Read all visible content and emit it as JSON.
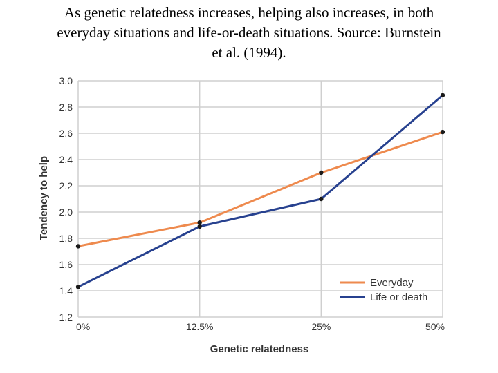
{
  "caption": {
    "line1": "As genetic relatedness increases, helping also increases, in both",
    "line2": "everyday situations and life-or-death situations. Source: Burnstein",
    "line3": "et al. (1994)."
  },
  "chart_data": {
    "type": "line",
    "title": "",
    "xlabel": "Genetic relatedness",
    "ylabel": "Tendency to help",
    "categories": [
      "0%",
      "12.5%",
      "25%",
      "50%"
    ],
    "yticks": [
      "1.2",
      "1.4",
      "1.6",
      "1.8",
      "2.0",
      "2.2",
      "2.4",
      "2.6",
      "2.8",
      "3.0"
    ],
    "ylim": [
      1.2,
      3.0
    ],
    "grid": true,
    "legend_position": "bottom-right",
    "series": [
      {
        "name": "Everyday",
        "color": "#ee8a4e",
        "values": [
          1.74,
          1.92,
          2.3,
          2.61
        ]
      },
      {
        "name": "Life or death",
        "color": "#27418f",
        "values": [
          1.43,
          1.89,
          2.1,
          2.89
        ]
      }
    ]
  }
}
